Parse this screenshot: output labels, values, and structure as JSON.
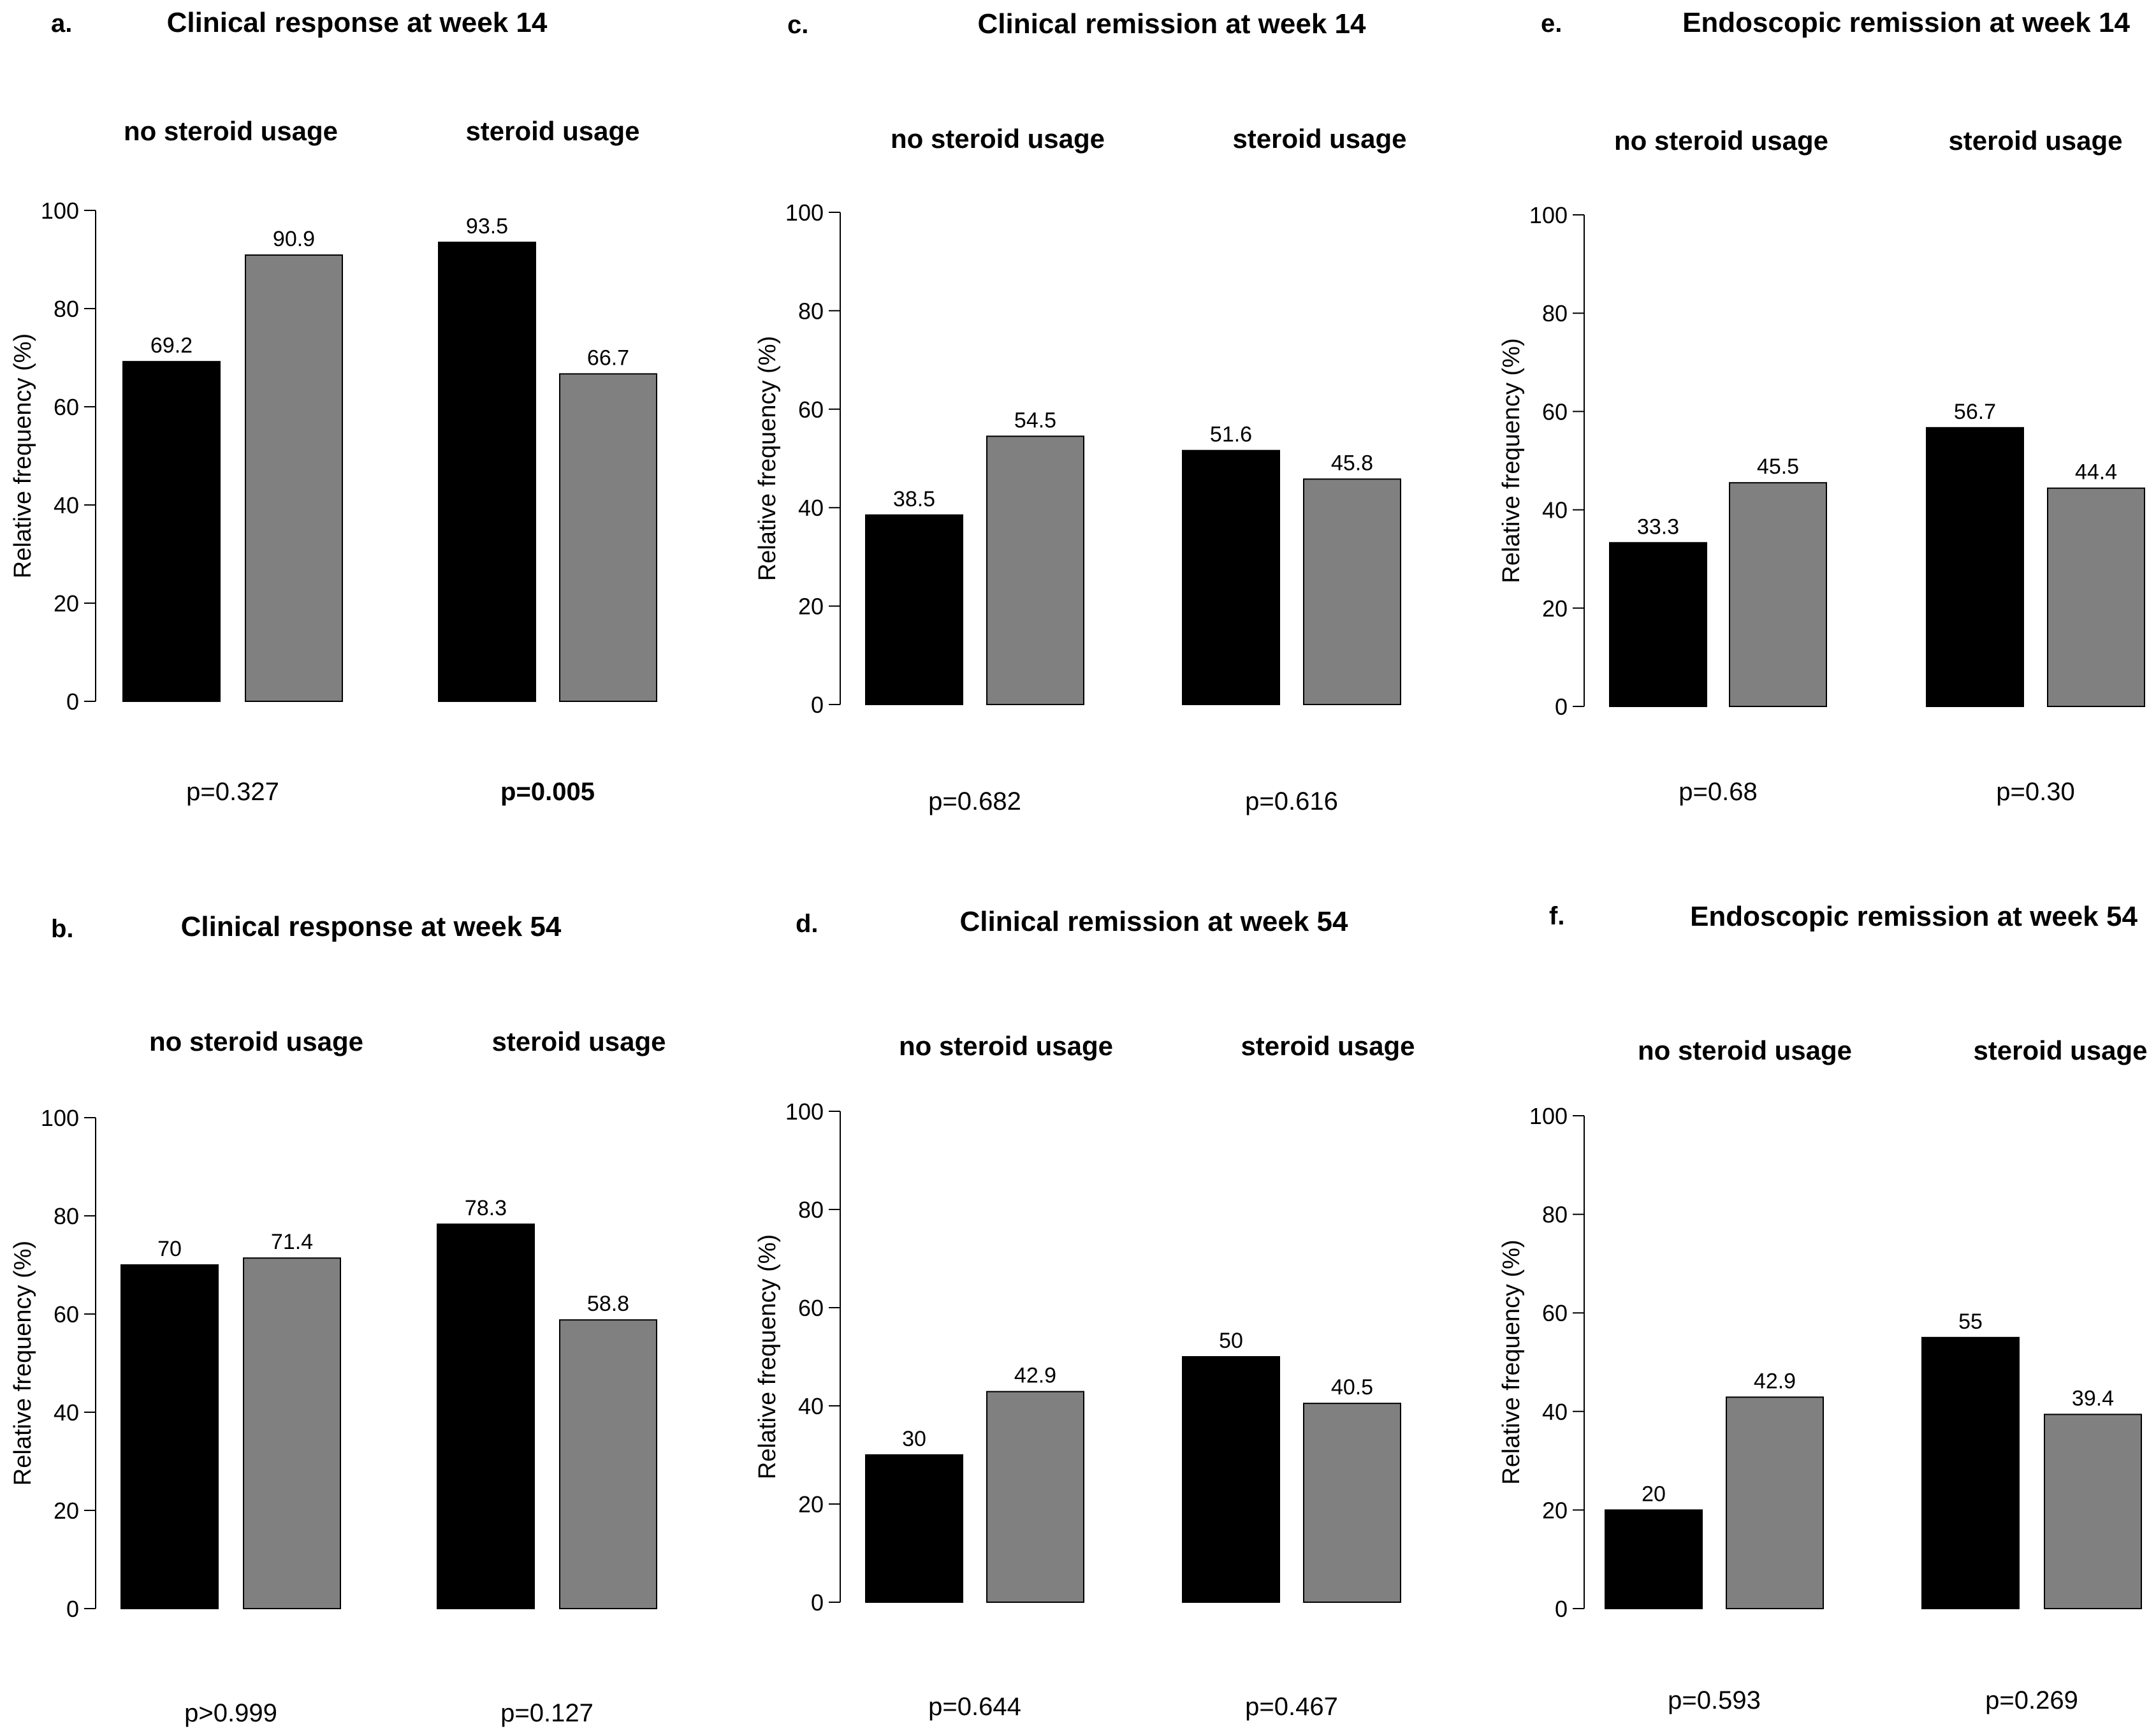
{
  "chart_data": [
    {
      "type": "bar",
      "panel": "a.",
      "title": "Clinical response at week 14",
      "ylabel": "Relative frequency (%)",
      "ylim": [
        0,
        100
      ],
      "yticks": [
        "0",
        "20",
        "40",
        "60",
        "80",
        "100"
      ],
      "groups": [
        {
          "label": "no steroid usage",
          "values": [
            69.2,
            90.9
          ],
          "value_labels": [
            "69.2",
            "90.9"
          ],
          "pvalue": "p=0.327",
          "pvalue_bold": false
        },
        {
          "label": "steroid usage",
          "values": [
            93.5,
            66.7
          ],
          "value_labels": [
            "93.5",
            "66.7"
          ],
          "pvalue": "p=0.005",
          "pvalue_bold": true
        }
      ]
    },
    {
      "type": "bar",
      "panel": "b.",
      "title": "Clinical response at week 54",
      "ylabel": "Relative frequency (%)",
      "ylim": [
        0,
        100
      ],
      "yticks": [
        "0",
        "20",
        "40",
        "60",
        "80",
        "100"
      ],
      "groups": [
        {
          "label": "no steroid usage",
          "values": [
            70,
            71.4
          ],
          "value_labels": [
            "70",
            "71.4"
          ],
          "pvalue": "p>0.999",
          "pvalue_bold": false
        },
        {
          "label": "steroid usage",
          "values": [
            78.3,
            58.8
          ],
          "value_labels": [
            "78.3",
            "58.8"
          ],
          "pvalue": "p=0.127",
          "pvalue_bold": false
        }
      ]
    },
    {
      "type": "bar",
      "panel": "c.",
      "title": "Clinical remission at week 14",
      "ylabel": "Relative frequency (%)",
      "ylim": [
        0,
        100
      ],
      "yticks": [
        "0",
        "20",
        "40",
        "60",
        "80",
        "100"
      ],
      "groups": [
        {
          "label": "no steroid usage",
          "values": [
            38.5,
            54.5
          ],
          "value_labels": [
            "38.5",
            "54.5"
          ],
          "pvalue": "p=0.682",
          "pvalue_bold": false
        },
        {
          "label": "steroid usage",
          "values": [
            51.6,
            45.8
          ],
          "value_labels": [
            "51.6",
            "45.8"
          ],
          "pvalue": "p=0.616",
          "pvalue_bold": false
        }
      ]
    },
    {
      "type": "bar",
      "panel": "d.",
      "title": "Clinical remission at week 54",
      "ylabel": "Relative frequency (%)",
      "ylim": [
        0,
        100
      ],
      "yticks": [
        "0",
        "20",
        "40",
        "60",
        "80",
        "100"
      ],
      "groups": [
        {
          "label": "no steroid usage",
          "values": [
            30,
            42.9
          ],
          "value_labels": [
            "30",
            "42.9"
          ],
          "pvalue": "p=0.644",
          "pvalue_bold": false
        },
        {
          "label": "steroid usage",
          "values": [
            50,
            40.5
          ],
          "value_labels": [
            "50",
            "40.5"
          ],
          "pvalue": "p=0.467",
          "pvalue_bold": false
        }
      ]
    },
    {
      "type": "bar",
      "panel": "e.",
      "title": "Endoscopic remission at week 14",
      "ylabel": "Relative frequency (%)",
      "ylim": [
        0,
        100
      ],
      "yticks": [
        "0",
        "20",
        "40",
        "60",
        "80",
        "100"
      ],
      "groups": [
        {
          "label": "no steroid usage",
          "values": [
            33.3,
            45.5
          ],
          "value_labels": [
            "33.3",
            "45.5"
          ],
          "pvalue": "p=0.68",
          "pvalue_bold": false
        },
        {
          "label": "steroid usage",
          "values": [
            56.7,
            44.4
          ],
          "value_labels": [
            "56.7",
            "44.4"
          ],
          "pvalue": "p=0.30",
          "pvalue_bold": false
        }
      ]
    },
    {
      "type": "bar",
      "panel": "f.",
      "title": "Endoscopic remission at week 54",
      "ylabel": "Relative frequency (%)",
      "ylim": [
        0,
        100
      ],
      "yticks": [
        "0",
        "20",
        "40",
        "60",
        "80",
        "100"
      ],
      "groups": [
        {
          "label": "no steroid usage",
          "values": [
            20,
            42.9
          ],
          "value_labels": [
            "20",
            "42.9"
          ],
          "pvalue": "p=0.593",
          "pvalue_bold": false
        },
        {
          "label": "steroid usage",
          "values": [
            55,
            39.4
          ],
          "value_labels": [
            "55",
            "39.4"
          ],
          "pvalue": "p=0.269",
          "pvalue_bold": false
        }
      ]
    }
  ],
  "colors": {
    "bar_series_1": "#000000",
    "bar_series_2": "#808080"
  }
}
